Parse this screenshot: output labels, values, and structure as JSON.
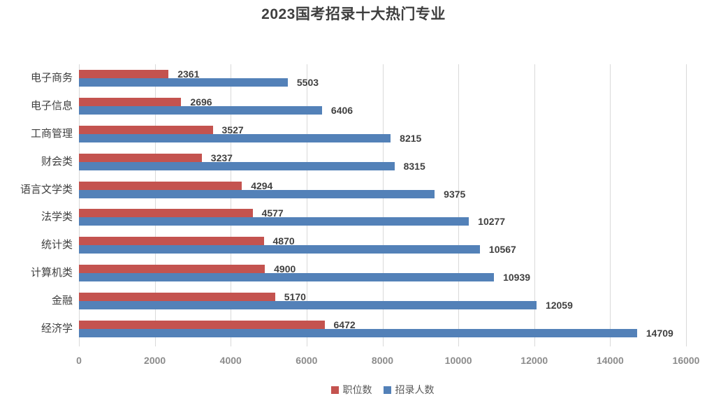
{
  "title": "2023国考招录十大热门专业",
  "colors": {
    "series_positions": "#c4534f",
    "series_recruits": "#5381b8",
    "gridline": "#d9d9d9",
    "tick_label": "#8c8c8c",
    "category_label": "#404040",
    "data_label": "#404040",
    "title_text": "#3f3f3f"
  },
  "chart_data": {
    "type": "bar",
    "orientation": "horizontal",
    "title": "2023国考招录十大热门专业",
    "categories": [
      "电子商务",
      "电子信息",
      "工商管理",
      "财会类",
      "语言文学类",
      "法学类",
      "统计类",
      "计算机类",
      "金融",
      "经济学"
    ],
    "series": [
      {
        "name": "职位数",
        "color": "#c4534f",
        "values": [
          2361,
          2696,
          3527,
          3237,
          4294,
          4577,
          4870,
          4900,
          5170,
          6472
        ]
      },
      {
        "name": "招录人数",
        "color": "#5381b8",
        "values": [
          5503,
          6406,
          8215,
          8315,
          9375,
          10277,
          10567,
          10939,
          12059,
          14709
        ]
      }
    ],
    "xlim": [
      0,
      16000
    ],
    "x_ticks": [
      0,
      2000,
      4000,
      6000,
      8000,
      10000,
      12000,
      14000,
      16000
    ],
    "xlabel": "",
    "ylabel": "",
    "grid": true,
    "data_labels": true,
    "legend_position": "bottom"
  }
}
